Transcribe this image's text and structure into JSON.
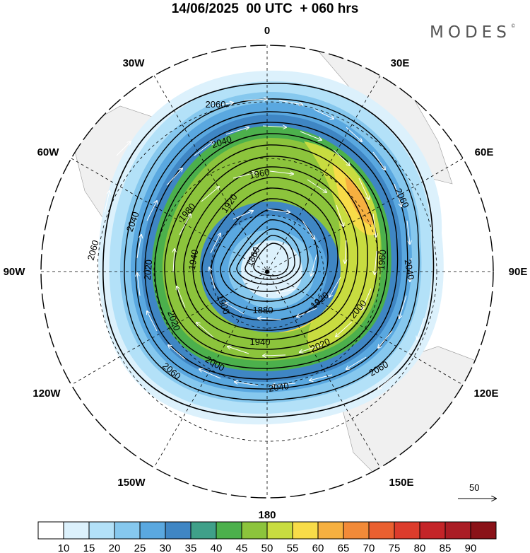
{
  "title": "14/06/2025  00 UTC  + 060 hrs",
  "brand": "MODES",
  "brand_mark": "©",
  "longitude_labels": [
    "0",
    "30E",
    "60E",
    "90E",
    "120E",
    "150E",
    "180",
    "150W",
    "120W",
    "90W",
    "60W",
    "30W"
  ],
  "contour_labels": [
    "1860",
    "1880",
    "1900",
    "1920",
    "1940",
    "1960",
    "1980",
    "2000",
    "2020",
    "2040",
    "2060"
  ],
  "vector_reference": {
    "value": "50",
    "arrow": "long-right-arrow-icon"
  },
  "colorbar": {
    "labels": [
      "10",
      "15",
      "20",
      "25",
      "30",
      "35",
      "40",
      "45",
      "50",
      "55",
      "60",
      "65",
      "70",
      "75",
      "80",
      "85",
      "90"
    ],
    "colors": [
      "#ffffff",
      "#dcf1fc",
      "#b3e1f8",
      "#86c8ee",
      "#5aa8e0",
      "#3f86c4",
      "#3fa089",
      "#4cb04c",
      "#8cc43c",
      "#c8dc40",
      "#f8dc48",
      "#f6b040",
      "#f28a38",
      "#ea6030",
      "#dc3c2c",
      "#c42428",
      "#aa1c24",
      "#8a1218"
    ]
  }
}
